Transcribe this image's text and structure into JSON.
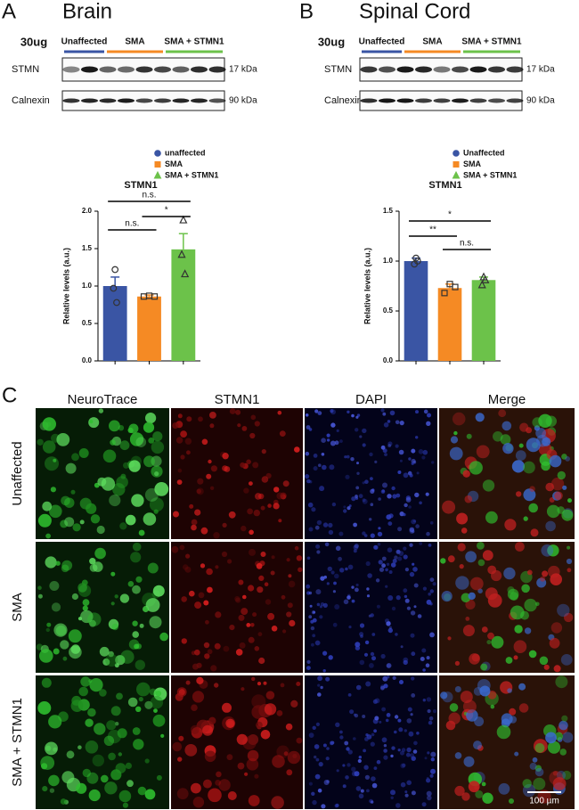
{
  "panel_a": {
    "label": "A",
    "title": "Brain",
    "blot": {
      "loading": "30ug",
      "groups": [
        "Unaffected",
        "SMA",
        "SMA + STMN1"
      ],
      "rows": [
        {
          "name": "STMN",
          "size": "17 kDa"
        },
        {
          "name": "Calnexin",
          "size": "90 kDa"
        }
      ]
    }
  },
  "panel_b": {
    "label": "B",
    "title": "Spinal Cord",
    "blot": {
      "loading": "30ug",
      "groups": [
        "Unaffected",
        "SMA",
        "SMA + STMN1"
      ],
      "rows": [
        {
          "name": "STMN",
          "size": "17 kDa"
        },
        {
          "name": "Calnexin",
          "size": "90 kDa"
        }
      ]
    }
  },
  "chart_data": [
    {
      "type": "bar",
      "title": "STMN1",
      "y_label": "Relative levels (a.u.)",
      "ylim": [
        0,
        2
      ],
      "yticks": [
        {
          "value": 0,
          "label": "0.0"
        },
        0.5,
        {
          "value": 1,
          "label": "1.0"
        },
        1.5,
        {
          "value": 2,
          "label": "2.0"
        }
      ],
      "series": [
        {
          "name": "unaffected",
          "color": "#3a55a4",
          "marker": "circle",
          "values": [
            1.0
          ],
          "errors": [
            0.12
          ],
          "points": [
            1.22,
            0.97,
            0.78
          ]
        },
        {
          "name": "SMA",
          "color": "#f58a24",
          "marker": "square",
          "values": [
            0.86
          ],
          "errors": [
            0.02
          ],
          "points": [
            0.87,
            0.86,
            0.86
          ]
        },
        {
          "name": "SMA + STMN1",
          "color": "#6cc24a",
          "marker": "triangle",
          "values": [
            1.49
          ],
          "errors": [
            0.21
          ],
          "points": [
            1.88,
            1.42,
            1.16
          ]
        }
      ],
      "annotations": [
        "n.s.",
        "n.s.",
        "*"
      ]
    },
    {
      "type": "bar",
      "title": "STMN1",
      "y_label": "Relative levels (a.u.)",
      "ylim": [
        0,
        1.5
      ],
      "yticks": [
        {
          "value": 0,
          "label": "0.0"
        },
        0.5,
        {
          "value": 1,
          "label": "1.0"
        },
        1.5
      ],
      "series": [
        {
          "name": "Unaffected",
          "color": "#3a55a4",
          "marker": "circle",
          "values": [
            1.0
          ],
          "errors": [
            0.03
          ],
          "points": [
            1.03,
            0.97,
            1.0
          ]
        },
        {
          "name": "SMA",
          "color": "#f58a24",
          "marker": "square",
          "values": [
            0.73
          ],
          "errors": [
            0.04
          ],
          "points": [
            0.77,
            0.68,
            0.74
          ]
        },
        {
          "name": "SMA + STMN1",
          "color": "#6cc24a",
          "marker": "triangle",
          "values": [
            0.81
          ],
          "errors": [
            0.03
          ],
          "points": [
            0.84,
            0.76,
            0.81
          ]
        }
      ],
      "annotations": [
        "*",
        "**",
        "n.s."
      ]
    }
  ],
  "panel_c": {
    "label": "C",
    "columns": [
      "NeuroTrace",
      "STMN1",
      "DAPI",
      "Merge"
    ],
    "rows": [
      "Unaffected",
      "SMA",
      "SMA + STMN1"
    ],
    "scale_bar": "100 µm"
  }
}
